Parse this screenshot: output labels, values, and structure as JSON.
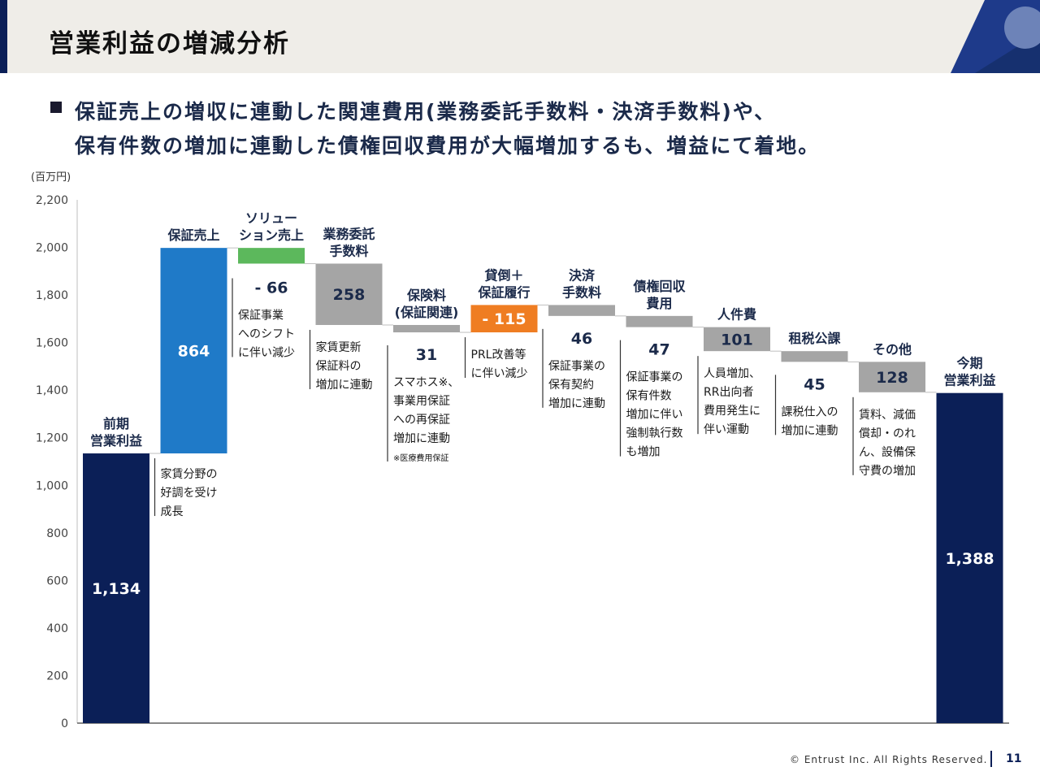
{
  "title": "営業利益の増減分析",
  "summary": {
    "line1": "保証売上の増収に連動した関連費用(業務委託手数料・決済手数料)や、",
    "line2": "保有件数の増加に連動した債権回収費用が大幅増加するも、増益にて着地。"
  },
  "unit": "(百万円)",
  "footer": {
    "copyright": "© Entrust Inc. All Rights Reserved.",
    "page": "11"
  },
  "colors": {
    "navy": "#0b1f57",
    "blue": "#1f7ac8",
    "green": "#5cb85c",
    "gray": "#a5a5a5",
    "orange": "#ef7d22",
    "accent": "#1e3a8a"
  },
  "chart_data": {
    "type": "waterfall",
    "ylim": [
      0,
      2200
    ],
    "yticks": [
      0,
      200,
      400,
      600,
      800,
      1000,
      1200,
      1400,
      1600,
      1800,
      2000,
      2200
    ],
    "ytick_labels": [
      "0",
      "200",
      "400",
      "600",
      "800",
      "1,000",
      "1,200",
      "1,400",
      "1,600",
      "1,800",
      "2,000",
      "2,200"
    ],
    "bars": [
      {
        "label": [
          "前期",
          "営業利益"
        ],
        "kind": "total",
        "value": 1134,
        "value_label": "1,134",
        "color": "navy",
        "note": []
      },
      {
        "label": [
          "保証売上"
        ],
        "kind": "increase",
        "value": 864,
        "value_label": "864",
        "color": "blue",
        "note": [
          "家賃分野の",
          "好調を受け",
          "成長"
        ]
      },
      {
        "label": [
          "ソリュー",
          "ション売上"
        ],
        "kind": "decrease",
        "value": 66,
        "value_label": "- 66",
        "color": "green",
        "note": [
          "保証事業",
          "へのシフト",
          "に伴い減少"
        ]
      },
      {
        "label": [
          "業務委託",
          "手数料"
        ],
        "kind": "decrease",
        "value": 258,
        "value_label": "258",
        "color": "gray",
        "note": [
          "家賃更新",
          "保証料の",
          "増加に連動"
        ]
      },
      {
        "label": [
          "保険料",
          "(保証関連)"
        ],
        "kind": "decrease",
        "value": 31,
        "value_label": "31",
        "color": "gray",
        "note": [
          "スマホス※、",
          "事業用保証",
          "への再保証",
          "増加に連動",
          "※医療費用保証"
        ]
      },
      {
        "label": [
          "貸倒＋",
          "保証履行"
        ],
        "kind": "increase",
        "value": 115,
        "value_label": "- 115",
        "color": "orange",
        "note": [
          "PRL改善等",
          "に伴い減少"
        ]
      },
      {
        "label": [
          "決済",
          "手数料"
        ],
        "kind": "decrease",
        "value": 46,
        "value_label": "46",
        "color": "gray",
        "note": [
          "保証事業の",
          "保有契約",
          "増加に連動"
        ]
      },
      {
        "label": [
          "債権回収",
          "費用"
        ],
        "kind": "decrease",
        "value": 47,
        "value_label": "47",
        "color": "gray",
        "note": [
          "保証事業の",
          "保有件数",
          "増加に伴い",
          "強制執行数",
          "も増加"
        ]
      },
      {
        "label": [
          "人件費"
        ],
        "kind": "decrease",
        "value": 101,
        "value_label": "101",
        "color": "gray",
        "note": [
          "人員増加、",
          "RR出向者",
          "費用発生に",
          "伴い運動"
        ]
      },
      {
        "label": [
          "租税公課"
        ],
        "kind": "decrease",
        "value": 45,
        "value_label": "45",
        "color": "gray",
        "note": [
          "課税仕入の",
          "増加に連動"
        ]
      },
      {
        "label": [
          "その他"
        ],
        "kind": "decrease",
        "value": 128,
        "value_label": "128",
        "color": "gray",
        "note": [
          "賃料、減価",
          "償却・のれ",
          "ん、設備保",
          "守費の増加"
        ]
      },
      {
        "label": [
          "今期",
          "営業利益"
        ],
        "kind": "total",
        "value": 1388,
        "value_label": "1,388",
        "color": "navy",
        "note": []
      }
    ]
  }
}
